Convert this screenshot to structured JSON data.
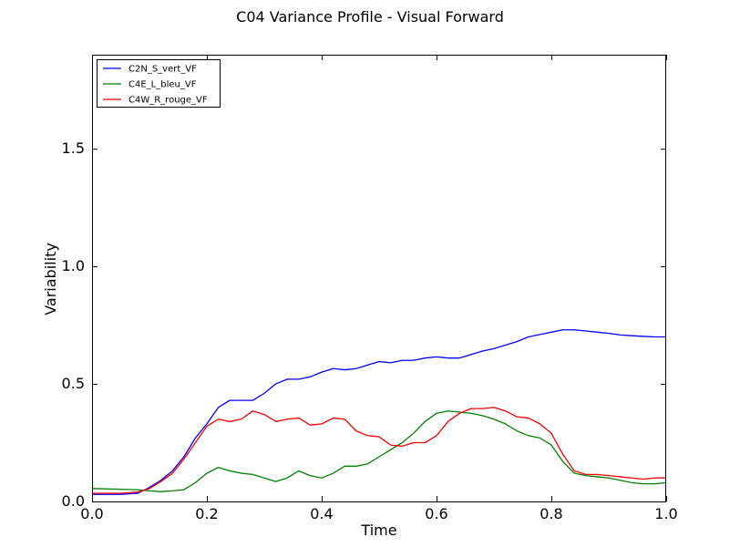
{
  "chart_data": {
    "type": "line",
    "title": "C04 Variance Profile - Visual Forward",
    "xlabel": "Time",
    "ylabel": "Variability",
    "xlim": [
      0.0,
      1.0
    ],
    "ylim": [
      0.0,
      1.9
    ],
    "x_ticks": [
      "0.0",
      "0.2",
      "0.4",
      "0.6",
      "0.8",
      "1.0"
    ],
    "y_ticks": [
      "0.0",
      "0.5",
      "1.0",
      "1.5"
    ],
    "grid": false,
    "legend_position": "top-left",
    "x": [
      0.0,
      0.05,
      0.08,
      0.1,
      0.12,
      0.14,
      0.16,
      0.18,
      0.2,
      0.22,
      0.24,
      0.26,
      0.28,
      0.3,
      0.32,
      0.34,
      0.36,
      0.38,
      0.4,
      0.42,
      0.44,
      0.46,
      0.48,
      0.5,
      0.52,
      0.54,
      0.56,
      0.58,
      0.6,
      0.62,
      0.64,
      0.66,
      0.68,
      0.7,
      0.72,
      0.74,
      0.76,
      0.78,
      0.8,
      0.82,
      0.84,
      0.86,
      0.88,
      0.9,
      0.92,
      0.94,
      0.96,
      0.98,
      1.0
    ],
    "series": [
      {
        "name": "C2N_S_vert_VF",
        "color": "#0000ff",
        "values": [
          0.03,
          0.03,
          0.035,
          0.06,
          0.09,
          0.13,
          0.19,
          0.27,
          0.33,
          0.4,
          0.43,
          0.43,
          0.43,
          0.46,
          0.5,
          0.52,
          0.52,
          0.53,
          0.55,
          0.565,
          0.56,
          0.565,
          0.58,
          0.595,
          0.59,
          0.6,
          0.6,
          0.61,
          0.615,
          0.61,
          0.61,
          0.625,
          0.64,
          0.65,
          0.665,
          0.68,
          0.7,
          0.71,
          0.72,
          0.73,
          0.73,
          0.725,
          0.72,
          0.715,
          0.708,
          0.705,
          0.702,
          0.7,
          0.7
        ]
      },
      {
        "name": "C4E_L_bleu_VF",
        "color": "#008000",
        "values": [
          0.055,
          0.052,
          0.05,
          0.045,
          0.042,
          0.045,
          0.05,
          0.08,
          0.12,
          0.145,
          0.13,
          0.12,
          0.115,
          0.1,
          0.085,
          0.1,
          0.13,
          0.11,
          0.1,
          0.12,
          0.15,
          0.15,
          0.16,
          0.19,
          0.22,
          0.25,
          0.29,
          0.34,
          0.375,
          0.385,
          0.38,
          0.375,
          0.365,
          0.35,
          0.33,
          0.3,
          0.28,
          0.27,
          0.24,
          0.17,
          0.12,
          0.11,
          0.105,
          0.1,
          0.09,
          0.08,
          0.075,
          0.075,
          0.08
        ]
      },
      {
        "name": "C4W_R_rouge_VF",
        "color": "#ff0000",
        "values": [
          0.035,
          0.035,
          0.04,
          0.055,
          0.085,
          0.12,
          0.18,
          0.25,
          0.32,
          0.35,
          0.34,
          0.35,
          0.385,
          0.37,
          0.34,
          0.35,
          0.355,
          0.325,
          0.33,
          0.355,
          0.35,
          0.3,
          0.28,
          0.275,
          0.24,
          0.235,
          0.25,
          0.25,
          0.28,
          0.34,
          0.375,
          0.395,
          0.395,
          0.4,
          0.385,
          0.36,
          0.355,
          0.33,
          0.29,
          0.2,
          0.13,
          0.115,
          0.115,
          0.11,
          0.105,
          0.1,
          0.095,
          0.1,
          0.1
        ]
      }
    ]
  }
}
